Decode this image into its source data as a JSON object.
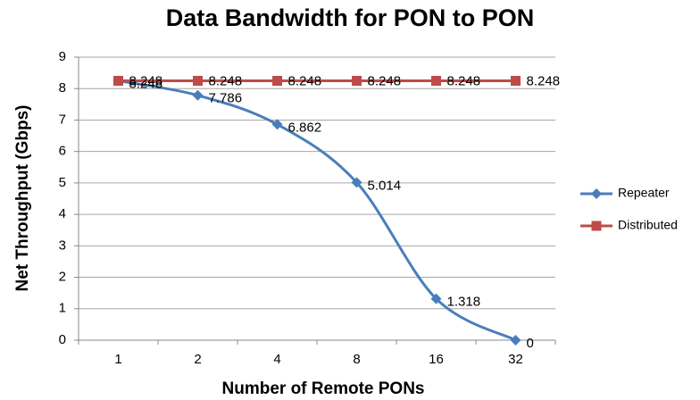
{
  "chart_data": {
    "type": "line",
    "title": "Data Bandwidth for PON to PON",
    "x_label": "Number of Remote PONs",
    "y_label": "Net Throughput (Gbps)",
    "categories": [
      "1",
      "2",
      "4",
      "8",
      "16",
      "32"
    ],
    "series": [
      {
        "name": "Repeater",
        "color": "#4a7ebb",
        "marker": "diamond",
        "values": [
          8.248,
          7.786,
          6.862,
          5.014,
          1.318,
          0
        ]
      },
      {
        "name": "Distributed",
        "color": "#be4b48",
        "marker": "square",
        "values": [
          8.248,
          8.248,
          8.248,
          8.248,
          8.248,
          8.248
        ]
      }
    ],
    "ylim": [
      0,
      9
    ],
    "yticks": [
      0,
      1,
      2,
      3,
      4,
      5,
      6,
      7,
      8,
      9
    ],
    "grid": true,
    "legend": "right"
  }
}
